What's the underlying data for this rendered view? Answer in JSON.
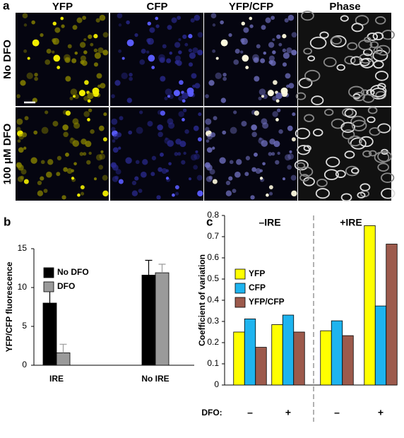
{
  "image_panel": {
    "label": "a",
    "columns": [
      "YFP",
      "CFP",
      "YFP/CFP",
      "Phase"
    ],
    "rows": [
      "No DFO",
      "100 μM DFO"
    ]
  },
  "chart_data": [
    {
      "type": "bar",
      "panel_label": "b",
      "y_label": "YFP/CFP fluorescence",
      "categories": [
        "IRE",
        "No IRE"
      ],
      "series": [
        {
          "name": "No DFO",
          "color": "#000000",
          "values": [
            8,
            11.6
          ],
          "errors": [
            1.7,
            1.9
          ]
        },
        {
          "name": "DFO",
          "color": "#9a9a9a",
          "values": [
            1.6,
            11.9
          ],
          "errors": [
            1.1,
            1.1
          ]
        }
      ],
      "ylim": [
        0,
        15
      ],
      "yticks": [
        0,
        5,
        10,
        15
      ],
      "legend": "upper left",
      "grid": false
    },
    {
      "type": "bar",
      "panel_label": "c",
      "y_label": "Coefficient of variation",
      "x_label": "DFO:",
      "categories": [
        "–",
        "+",
        "–",
        "+"
      ],
      "annotations": [
        "–IRE",
        "+IRE"
      ],
      "series": [
        {
          "name": "YFP",
          "color": "#ffff00",
          "values": [
            0.25,
            0.285,
            0.256,
            0.752
          ]
        },
        {
          "name": "CFP",
          "color": "#1eb4ef",
          "values": [
            0.312,
            0.33,
            0.303,
            0.373
          ]
        },
        {
          "name": "YFP/CFP",
          "color": "#9c5a4c",
          "values": [
            0.178,
            0.25,
            0.233,
            0.665
          ]
        }
      ],
      "ylim": [
        0,
        0.8
      ],
      "yticks": [
        0,
        0.1,
        0.2,
        0.3,
        0.4,
        0.5,
        0.6,
        0.7,
        0.8
      ],
      "legend": "upper left",
      "grid": false
    }
  ]
}
